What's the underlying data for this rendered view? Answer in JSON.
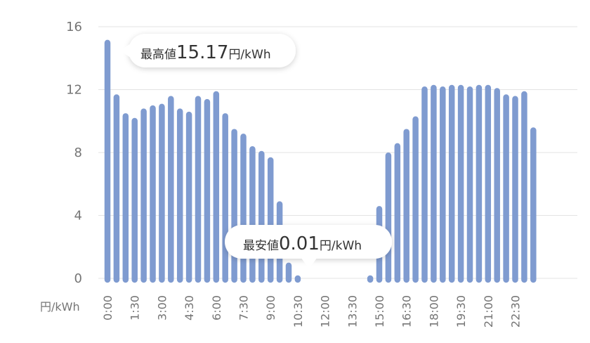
{
  "chart_data": {
    "type": "bar",
    "title": "",
    "xlabel": "",
    "ylabel": "円/kWh",
    "ylim": [
      0,
      16
    ],
    "yticks": [
      0,
      4,
      8,
      12,
      16
    ],
    "grid": true,
    "bar_color": "#7f9bd0",
    "x_tick_labels": [
      "0:00",
      "1:30",
      "3:00",
      "4:30",
      "6:00",
      "7:30",
      "9:00",
      "10:30",
      "12:00",
      "13:30",
      "15:00",
      "16:30",
      "18:00",
      "19:30",
      "21:00",
      "22:30"
    ],
    "categories": [
      "0:00",
      "0:30",
      "1:00",
      "1:30",
      "2:00",
      "2:30",
      "3:00",
      "3:30",
      "4:00",
      "4:30",
      "5:00",
      "5:30",
      "6:00",
      "6:30",
      "7:00",
      "7:30",
      "8:00",
      "8:30",
      "9:00",
      "9:30",
      "10:00",
      "10:30",
      "11:00",
      "11:30",
      "12:00",
      "12:30",
      "13:00",
      "13:30",
      "14:00",
      "14:30",
      "15:00",
      "15:30",
      "16:00",
      "16:30",
      "17:00",
      "17:30",
      "18:00",
      "18:30",
      "19:00",
      "19:30",
      "20:00",
      "20:30",
      "21:00",
      "21:30",
      "22:00",
      "22:30",
      "23:00",
      "23:30"
    ],
    "values": [
      15.17,
      11.7,
      10.5,
      10.2,
      10.8,
      11.0,
      11.1,
      11.6,
      10.8,
      10.6,
      11.6,
      11.4,
      11.9,
      10.5,
      9.5,
      9.2,
      8.4,
      8.1,
      7.7,
      4.9,
      1.0,
      0.01,
      null,
      null,
      null,
      null,
      null,
      null,
      null,
      0.1,
      4.6,
      8.0,
      8.6,
      9.5,
      10.3,
      12.2,
      12.3,
      12.2,
      12.3,
      12.3,
      12.2,
      12.3,
      12.3,
      12.1,
      11.7,
      11.6,
      11.9,
      9.6
    ],
    "annotations": [
      {
        "label": "最高値",
        "value": "15.17",
        "unit": "円/kWh",
        "index": 0
      },
      {
        "label": "最安値",
        "value": "0.01",
        "unit": "円/kWh",
        "index": 21
      }
    ]
  }
}
